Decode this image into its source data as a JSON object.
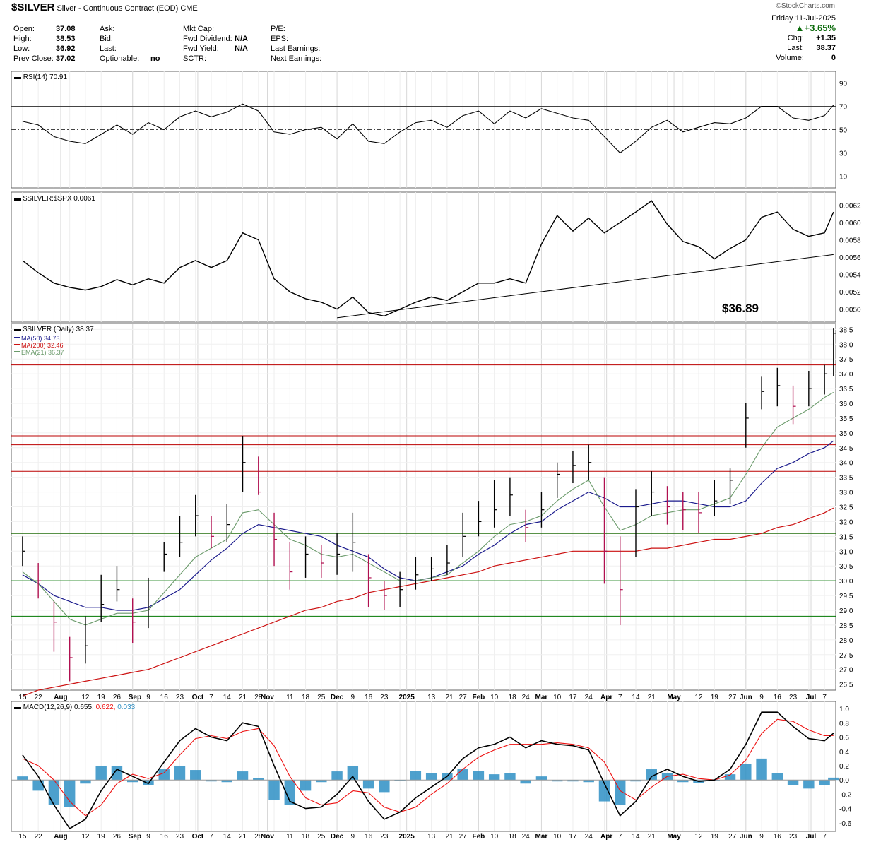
{
  "header": {
    "symbol": "$SILVER",
    "description": "Silver - Continuous Contract (EOD)",
    "exchange": "CME",
    "watermark": "©StockCharts.com",
    "date": "Friday  11-Jul-2025",
    "pct_change": "+3.65%",
    "chg_label": "Chg:",
    "chg_value": "+1.35",
    "last_label": "Last:",
    "last_value": "38.37",
    "volume_label": "Volume:",
    "volume_value": "0",
    "col1": [
      [
        "Open:",
        "37.08"
      ],
      [
        "High:",
        "38.53"
      ],
      [
        "Low:",
        "36.92"
      ],
      [
        "Prev Close:",
        "37.02"
      ]
    ],
    "col2": [
      [
        "Ask:",
        ""
      ],
      [
        "Bid:",
        ""
      ],
      [
        "Last:",
        ""
      ],
      [
        "Optionable:",
        "no"
      ]
    ],
    "col3": [
      [
        "Mkt Cap:",
        ""
      ],
      [
        "Fwd Dividend:",
        "N/A"
      ],
      [
        "Fwd Yield:",
        "N/A"
      ],
      [
        "SCTR:",
        ""
      ]
    ],
    "col4": [
      "P/E:",
      "EPS:",
      "Last Earnings:",
      "Next Earnings:"
    ]
  },
  "colors": {
    "price_bar_up": "#000000",
    "price_bar_down": "#b01050",
    "ma50": "#1a1a8c",
    "ma200": "#cc1111",
    "ema21": "#6a9a6a",
    "resistance": "#bb0000",
    "support": "#007700",
    "macd_line": "#000000",
    "signal_line": "#ee1111",
    "histogram": "#2e8fc4"
  },
  "chart_data": [
    {
      "type": "line",
      "panel": "RSI",
      "legend": "RSI(14) 70.91",
      "last_value": 70.91,
      "ylim": [
        0,
        100
      ],
      "y_ticks": [
        10,
        30,
        50,
        70,
        90
      ],
      "reference_lines": [
        30,
        50,
        70
      ],
      "x": [
        "2024-07-15",
        "2024-07-22",
        "2024-07-29",
        "2024-08-05",
        "2024-08-12",
        "2024-08-19",
        "2024-08-26",
        "2024-09-02",
        "2024-09-09",
        "2024-09-16",
        "2024-09-23",
        "2024-09-30",
        "2024-10-07",
        "2024-10-14",
        "2024-10-21",
        "2024-10-28",
        "2024-11-04",
        "2024-11-11",
        "2024-11-18",
        "2024-11-25",
        "2024-12-02",
        "2024-12-09",
        "2024-12-16",
        "2024-12-23",
        "2024-12-30",
        "2025-01-06",
        "2025-01-13",
        "2025-01-20",
        "2025-01-27",
        "2025-02-03",
        "2025-02-10",
        "2025-02-17",
        "2025-02-24",
        "2025-03-03",
        "2025-03-10",
        "2025-03-17",
        "2025-03-24",
        "2025-03-31",
        "2025-04-07",
        "2025-04-14",
        "2025-04-21",
        "2025-04-28",
        "2025-05-05",
        "2025-05-12",
        "2025-05-19",
        "2025-05-26",
        "2025-06-02",
        "2025-06-09",
        "2025-06-16",
        "2025-06-23",
        "2025-06-30",
        "2025-07-07",
        "2025-07-11"
      ],
      "values": [
        57,
        54,
        44,
        40,
        38,
        46,
        54,
        46,
        56,
        50,
        61,
        66,
        61,
        65,
        72,
        66,
        48,
        46,
        50,
        52,
        42,
        55,
        40,
        38,
        48,
        56,
        58,
        52,
        62,
        66,
        55,
        66,
        60,
        68,
        64,
        60,
        58,
        44,
        30,
        40,
        52,
        58,
        48,
        52,
        56,
        55,
        60,
        70,
        70,
        60,
        58,
        62,
        71
      ]
    },
    {
      "type": "line",
      "panel": "Ratio",
      "legend": "$SILVER:$SPX 0.0061",
      "last_value": 0.0061,
      "ylim": [
        0.00485,
        0.00635
      ],
      "y_ticks": [
        "0.0050",
        "0.0052",
        "0.0054",
        "0.0056",
        "0.0058",
        "0.0060",
        "0.0062"
      ],
      "x": [
        "2024-07-15",
        "2024-07-22",
        "2024-07-29",
        "2024-08-05",
        "2024-08-12",
        "2024-08-19",
        "2024-08-26",
        "2024-09-02",
        "2024-09-09",
        "2024-09-16",
        "2024-09-23",
        "2024-09-30",
        "2024-10-07",
        "2024-10-14",
        "2024-10-21",
        "2024-10-28",
        "2024-11-04",
        "2024-11-11",
        "2024-11-18",
        "2024-11-25",
        "2024-12-02",
        "2024-12-09",
        "2024-12-16",
        "2024-12-23",
        "2024-12-30",
        "2025-01-06",
        "2025-01-13",
        "2025-01-20",
        "2025-01-27",
        "2025-02-03",
        "2025-02-10",
        "2025-02-17",
        "2025-02-24",
        "2025-03-03",
        "2025-03-10",
        "2025-03-17",
        "2025-03-24",
        "2025-03-31",
        "2025-04-07",
        "2025-04-14",
        "2025-04-21",
        "2025-04-28",
        "2025-05-05",
        "2025-05-12",
        "2025-05-19",
        "2025-05-26",
        "2025-06-02",
        "2025-06-09",
        "2025-06-16",
        "2025-06-23",
        "2025-06-30",
        "2025-07-07",
        "2025-07-11"
      ],
      "values": [
        0.00556,
        0.00542,
        0.0053,
        0.00525,
        0.00522,
        0.00526,
        0.00534,
        0.00528,
        0.00535,
        0.0053,
        0.00548,
        0.00556,
        0.00548,
        0.00556,
        0.00588,
        0.0058,
        0.00535,
        0.0052,
        0.00512,
        0.00508,
        0.005,
        0.00514,
        0.00496,
        0.00492,
        0.005,
        0.00508,
        0.00514,
        0.0051,
        0.0052,
        0.0053,
        0.0053,
        0.00535,
        0.0053,
        0.00575,
        0.00608,
        0.0059,
        0.00605,
        0.00588,
        0.006,
        0.00612,
        0.00625,
        0.00598,
        0.00578,
        0.00572,
        0.00558,
        0.0057,
        0.0058,
        0.00606,
        0.00612,
        0.00592,
        0.00584,
        0.00588,
        0.00612
      ],
      "trendline": {
        "from": [
          "2024-12-02",
          0.0049
        ],
        "to": [
          "2025-07-11",
          0.00563
        ]
      },
      "annotation": "$36.89"
    },
    {
      "type": "ohlc",
      "panel": "Price",
      "legend": "$SILVER (Daily) 38.37",
      "ylim": [
        26.3,
        38.7
      ],
      "y_ticks": [
        "26.5",
        "27.0",
        "27.5",
        "28.0",
        "28.5",
        "29.0",
        "29.5",
        "30.0",
        "30.5",
        "31.0",
        "31.5",
        "32.0",
        "32.5",
        "33.0",
        "33.5",
        "34.0",
        "34.5",
        "35.0",
        "35.5",
        "36.0",
        "36.5",
        "37.0",
        "37.5",
        "38.0",
        "38.5"
      ],
      "x": [
        "2024-07-15",
        "2024-07-22",
        "2024-07-29",
        "2024-08-05",
        "2024-08-12",
        "2024-08-19",
        "2024-08-26",
        "2024-09-02",
        "2024-09-09",
        "2024-09-16",
        "2024-09-23",
        "2024-09-30",
        "2024-10-07",
        "2024-10-14",
        "2024-10-21",
        "2024-10-28",
        "2024-11-04",
        "2024-11-11",
        "2024-11-18",
        "2024-11-25",
        "2024-12-02",
        "2024-12-09",
        "2024-12-16",
        "2024-12-23",
        "2024-12-30",
        "2025-01-06",
        "2025-01-13",
        "2025-01-20",
        "2025-01-27",
        "2025-02-03",
        "2025-02-10",
        "2025-02-17",
        "2025-02-24",
        "2025-03-03",
        "2025-03-10",
        "2025-03-17",
        "2025-03-24",
        "2025-03-31",
        "2025-04-07",
        "2025-04-14",
        "2025-04-21",
        "2025-04-28",
        "2025-05-05",
        "2025-05-12",
        "2025-05-19",
        "2025-05-26",
        "2025-06-02",
        "2025-06-09",
        "2025-06-16",
        "2025-06-23",
        "2025-06-30",
        "2025-07-07",
        "2025-07-11"
      ],
      "close": [
        31.0,
        30.0,
        28.6,
        27.4,
        27.8,
        29.2,
        29.7,
        28.6,
        29.1,
        30.9,
        31.3,
        32.2,
        31.5,
        31.9,
        34.0,
        33.0,
        31.4,
        30.3,
        30.9,
        30.6,
        30.9,
        31.3,
        30.1,
        29.5,
        29.7,
        30.2,
        30.4,
        30.6,
        31.5,
        32.0,
        32.4,
        32.9,
        31.8,
        32.4,
        33.6,
        33.9,
        34.0,
        31.0,
        29.7,
        32.5,
        33.0,
        32.5,
        32.4,
        32.3,
        32.7,
        33.4,
        35.5,
        36.4,
        36.6,
        35.9,
        36.5,
        37.0,
        38.37
      ],
      "high": [
        31.5,
        30.6,
        29.3,
        28.1,
        28.8,
        30.2,
        30.5,
        29.4,
        30.1,
        31.3,
        32.2,
        32.9,
        32.2,
        32.6,
        34.9,
        34.2,
        32.3,
        31.3,
        31.5,
        31.2,
        31.6,
        32.3,
        30.9,
        30.0,
        30.3,
        30.8,
        30.8,
        31.2,
        32.3,
        32.7,
        33.4,
        33.5,
        32.4,
        33.0,
        34.0,
        34.4,
        34.6,
        33.5,
        31.5,
        33.1,
        33.7,
        33.2,
        33.0,
        33.0,
        33.4,
        33.8,
        36.0,
        36.9,
        37.2,
        36.6,
        37.1,
        37.3,
        38.53
      ],
      "low": [
        30.5,
        29.4,
        27.6,
        26.6,
        27.2,
        28.6,
        29.3,
        27.9,
        28.4,
        30.3,
        30.8,
        31.5,
        31.1,
        31.3,
        33.0,
        32.9,
        30.5,
        29.7,
        30.1,
        30.1,
        30.2,
        30.3,
        29.1,
        29.0,
        29.1,
        29.7,
        30.0,
        30.2,
        30.8,
        31.5,
        31.8,
        32.2,
        31.3,
        31.8,
        32.8,
        33.3,
        33.4,
        29.9,
        28.5,
        30.8,
        32.2,
        31.9,
        31.7,
        31.6,
        32.2,
        32.6,
        34.5,
        35.8,
        35.9,
        35.3,
        35.9,
        36.3,
        36.92
      ],
      "ma50": [
        30.2,
        29.9,
        29.5,
        29.3,
        29.1,
        29.1,
        29.0,
        29.0,
        29.1,
        29.4,
        29.7,
        30.2,
        30.7,
        31.1,
        31.6,
        31.9,
        31.8,
        31.7,
        31.6,
        31.5,
        31.2,
        31.0,
        30.8,
        30.4,
        30.1,
        30.0,
        30.1,
        30.3,
        30.5,
        30.9,
        31.2,
        31.6,
        31.9,
        32.0,
        32.4,
        32.7,
        33.0,
        32.8,
        32.5,
        32.5,
        32.6,
        32.7,
        32.7,
        32.6,
        32.5,
        32.5,
        32.7,
        33.3,
        33.8,
        34.0,
        34.3,
        34.5,
        34.73
      ],
      "ma200": [
        26.1,
        26.3,
        26.4,
        26.5,
        26.6,
        26.7,
        26.8,
        26.9,
        27.0,
        27.2,
        27.4,
        27.6,
        27.8,
        28.0,
        28.2,
        28.4,
        28.6,
        28.8,
        29.0,
        29.1,
        29.3,
        29.4,
        29.6,
        29.7,
        29.8,
        29.9,
        30.0,
        30.1,
        30.2,
        30.3,
        30.5,
        30.6,
        30.7,
        30.8,
        30.9,
        31.0,
        31.0,
        31.0,
        31.0,
        31.0,
        31.1,
        31.1,
        31.2,
        31.3,
        31.4,
        31.4,
        31.5,
        31.6,
        31.8,
        31.9,
        32.1,
        32.3,
        32.46
      ],
      "ema21": [
        30.3,
        29.9,
        29.3,
        28.7,
        28.5,
        28.7,
        28.9,
        28.9,
        29.0,
        29.6,
        30.2,
        30.8,
        31.1,
        31.4,
        32.3,
        32.4,
        31.9,
        31.4,
        31.2,
        30.9,
        30.8,
        30.9,
        30.6,
        30.3,
        30.0,
        30.0,
        30.1,
        30.2,
        30.6,
        31.0,
        31.5,
        31.9,
        32.0,
        32.2,
        32.7,
        33.1,
        33.4,
        32.5,
        31.7,
        31.9,
        32.2,
        32.3,
        32.4,
        32.4,
        32.6,
        32.8,
        33.6,
        34.5,
        35.2,
        35.5,
        35.8,
        36.2,
        36.37
      ],
      "legend_entries": [
        "MA(50) 34.73",
        "MA(200) 32.46",
        "EMA(21) 36.37"
      ],
      "resistance_lines": [
        37.3,
        34.9,
        34.6,
        33.7,
        31.6
      ],
      "support_lines": [
        31.6,
        30.0,
        28.8
      ],
      "x_tick_labels": [
        "15",
        "22",
        "Aug",
        "12",
        "19",
        "26",
        "Sep",
        "9",
        "16",
        "23",
        "Oct",
        "7",
        "14",
        "21",
        "28",
        "Nov",
        "11",
        "18",
        "25",
        "Dec",
        "9",
        "16",
        "23",
        "2025",
        "13",
        "21",
        "27",
        "Feb",
        "10",
        "18",
        "24",
        "Mar",
        "10",
        "17",
        "24",
        "Apr",
        "7",
        "14",
        "21",
        "May",
        "12",
        "19",
        "27",
        "Jun",
        "9",
        "16",
        "23",
        "Jul",
        "7"
      ]
    },
    {
      "type": "line",
      "panel": "MACD",
      "legend_label": "MACD(12,26,9)",
      "legend_macd": "0.655",
      "legend_signal": "0.622",
      "legend_hist": "0.033",
      "ylim": [
        -0.72,
        1.1
      ],
      "y_ticks": [
        "-0.6",
        "-0.4",
        "-0.2",
        "0.0",
        "0.2",
        "0.4",
        "0.6",
        "0.8",
        "1.0"
      ],
      "x": [
        "2024-07-15",
        "2024-07-22",
        "2024-07-29",
        "2024-08-05",
        "2024-08-12",
        "2024-08-19",
        "2024-08-26",
        "2024-09-02",
        "2024-09-09",
        "2024-09-16",
        "2024-09-23",
        "2024-09-30",
        "2024-10-07",
        "2024-10-14",
        "2024-10-21",
        "2024-10-28",
        "2024-11-04",
        "2024-11-11",
        "2024-11-18",
        "2024-11-25",
        "2024-12-02",
        "2024-12-09",
        "2024-12-16",
        "2024-12-23",
        "2024-12-30",
        "2025-01-06",
        "2025-01-13",
        "2025-01-20",
        "2025-01-27",
        "2025-02-03",
        "2025-02-10",
        "2025-02-17",
        "2025-02-24",
        "2025-03-03",
        "2025-03-10",
        "2025-03-17",
        "2025-03-24",
        "2025-03-31",
        "2025-04-07",
        "2025-04-14",
        "2025-04-21",
        "2025-04-28",
        "2025-05-05",
        "2025-05-12",
        "2025-05-19",
        "2025-05-26",
        "2025-06-02",
        "2025-06-09",
        "2025-06-16",
        "2025-06-23",
        "2025-06-30",
        "2025-07-07",
        "2025-07-11"
      ],
      "macd": [
        0.35,
        0.05,
        -0.35,
        -0.68,
        -0.55,
        -0.15,
        0.15,
        0.05,
        -0.05,
        0.25,
        0.55,
        0.72,
        0.6,
        0.55,
        0.8,
        0.75,
        0.2,
        -0.3,
        -0.4,
        -0.38,
        -0.2,
        0.05,
        -0.3,
        -0.55,
        -0.45,
        -0.25,
        -0.1,
        0.05,
        0.3,
        0.45,
        0.5,
        0.6,
        0.45,
        0.55,
        0.5,
        0.48,
        0.42,
        -0.05,
        -0.5,
        -0.3,
        0.05,
        0.15,
        0.05,
        -0.02,
        0.0,
        0.15,
        0.5,
        0.95,
        0.95,
        0.75,
        0.58,
        0.55,
        0.655
      ],
      "signal": [
        0.3,
        0.2,
        0.0,
        -0.3,
        -0.5,
        -0.35,
        -0.05,
        0.08,
        0.02,
        0.1,
        0.35,
        0.58,
        0.62,
        0.58,
        0.68,
        0.72,
        0.48,
        0.05,
        -0.25,
        -0.35,
        -0.32,
        -0.15,
        -0.18,
        -0.38,
        -0.45,
        -0.38,
        -0.2,
        -0.05,
        0.15,
        0.32,
        0.42,
        0.5,
        0.5,
        0.5,
        0.52,
        0.5,
        0.45,
        0.25,
        -0.15,
        -0.28,
        -0.1,
        0.05,
        0.08,
        0.02,
        0.0,
        0.07,
        0.28,
        0.65,
        0.85,
        0.82,
        0.7,
        0.62,
        0.622
      ]
    }
  ]
}
